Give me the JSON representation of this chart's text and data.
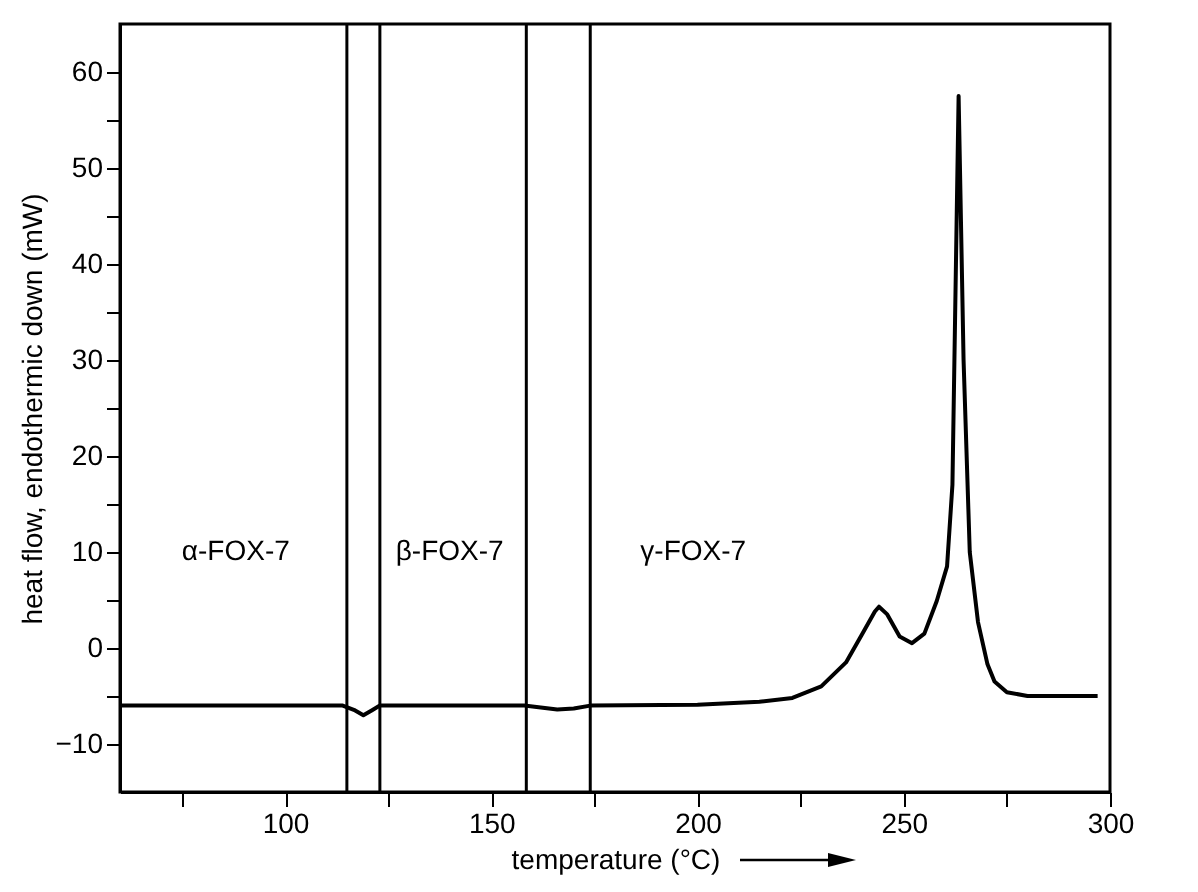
{
  "chart_data": {
    "type": "line",
    "xlabel": "temperature (°C)",
    "ylabel": "heat flow, endothermic down (mW)",
    "x": [
      60,
      100,
      114,
      117,
      119,
      121,
      123,
      140,
      158,
      162,
      166,
      170,
      174,
      200,
      215,
      223,
      230,
      236,
      240,
      243,
      244,
      246,
      249,
      252,
      255,
      258,
      260.5,
      261.8,
      263.3,
      264.5,
      266,
      268,
      270.3,
      272,
      275,
      280,
      297
    ],
    "series": [
      {
        "color": "#000000",
        "values": [
          -6,
          -6,
          -6,
          -6.5,
          -7,
          -6.5,
          -6,
          -6,
          -6,
          -6.2,
          -6.4,
          -6.3,
          -6,
          -5.9,
          -5.6,
          -5.2,
          -4,
          -1.5,
          1.5,
          3.8,
          4.3,
          3.5,
          1.2,
          0.5,
          1.5,
          4.9,
          8.5,
          17,
          57.5,
          30,
          10,
          2.7,
          -1.7,
          -3.5,
          -4.6,
          -5,
          -5
        ]
      }
    ],
    "xlim": [
      60,
      300
    ],
    "ylim": [
      -15,
      65
    ],
    "xticks": [
      {
        "value": 75,
        "label": null
      },
      100,
      {
        "value": 125,
        "label": null
      },
      150,
      {
        "value": 175,
        "label": null
      },
      200,
      {
        "value": 225,
        "label": null
      },
      250,
      {
        "value": 275,
        "label": null
      },
      300
    ],
    "yticks": [
      -10,
      {
        "value": -5,
        "label": null
      },
      0,
      {
        "value": 5,
        "label": null
      },
      10,
      {
        "value": 15,
        "label": null
      },
      20,
      {
        "value": 25,
        "label": null
      },
      30,
      {
        "value": 35,
        "label": null
      },
      40,
      {
        "value": 45,
        "label": null
      },
      50,
      {
        "value": 55,
        "label": null
      },
      60
    ],
    "ref_lines": [
      {
        "axis": "x",
        "value": 115,
        "color": "#000000"
      },
      {
        "axis": "x",
        "value": 123,
        "color": "#000000"
      },
      {
        "axis": "x",
        "value": 158.5,
        "color": "#000000"
      },
      {
        "axis": "x",
        "value": 174,
        "color": "#000000"
      }
    ],
    "annotations": [
      "α-FOX-7",
      "β-FOX-7",
      "γ-FOX-7"
    ],
    "grid": false,
    "marker": "none",
    "line_style": "solid"
  }
}
